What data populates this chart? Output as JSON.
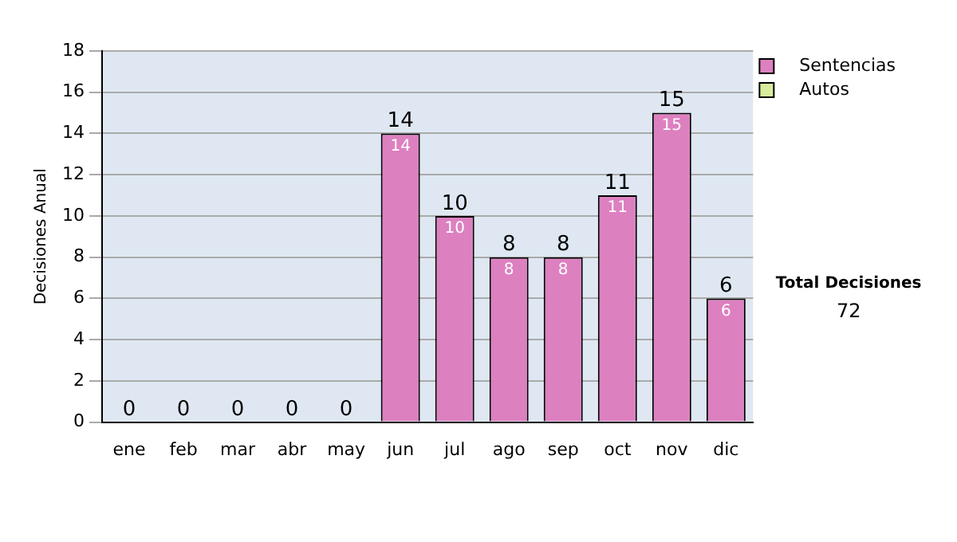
{
  "chart_data": {
    "type": "bar",
    "ylabel": "Decisiones Anual",
    "categories": [
      "ene",
      "feb",
      "mar",
      "abr",
      "may",
      "jun",
      "jul",
      "ago",
      "sep",
      "oct",
      "nov",
      "dic"
    ],
    "series": [
      {
        "name": "Sentencias",
        "color": "#dd80c0",
        "values": [
          0,
          0,
          0,
          0,
          0,
          14,
          10,
          8,
          8,
          11,
          15,
          6
        ],
        "value_labels": [
          null,
          null,
          null,
          null,
          null,
          "14",
          "10",
          "8",
          "8",
          "11",
          "15",
          "6"
        ]
      },
      {
        "name": "Autos",
        "color": "#d8ec9c",
        "values": [
          0,
          0,
          0,
          0,
          0,
          0,
          0,
          0,
          0,
          0,
          0,
          0
        ]
      }
    ],
    "stacked": true,
    "totals": [
      "0",
      "0",
      "0",
      "0",
      "0",
      "14",
      "10",
      "8",
      "8",
      "11",
      "15",
      "6"
    ],
    "ylim": [
      0,
      18
    ],
    "yticks": [
      0,
      2,
      4,
      6,
      8,
      10,
      12,
      14,
      16,
      18
    ],
    "grid": "y",
    "legend": "right",
    "annotations": [
      "Total Decisiones",
      "72"
    ]
  }
}
